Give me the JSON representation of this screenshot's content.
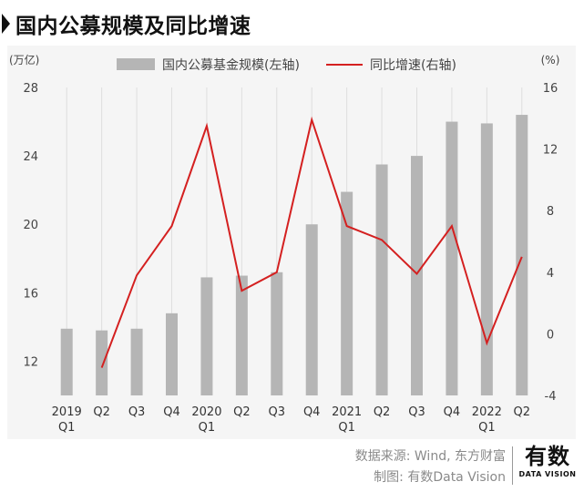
{
  "title": "国内公募规模及同比增速",
  "footer": {
    "source": "数据来源: Wind, 东方财富",
    "credit": "制图: 有数Data Vision"
  },
  "logo": {
    "main": "有数",
    "sub": "DATA VISION"
  },
  "colors": {
    "bar": "#b5b5b5",
    "line": "#d42020",
    "background": "#f5f5f5"
  },
  "chart_data": {
    "type": "bar+line",
    "categories": [
      "2019 Q1",
      "Q2",
      "Q3",
      "Q4",
      "2020 Q1",
      "Q2",
      "Q3",
      "Q4",
      "2021 Q1",
      "Q2",
      "Q3",
      "Q4",
      "2022 Q1",
      "Q2"
    ],
    "category_lines": [
      [
        "2019",
        "Q1"
      ],
      [
        "Q2"
      ],
      [
        "Q3"
      ],
      [
        "Q4"
      ],
      [
        "2020",
        "Q1"
      ],
      [
        "Q2"
      ],
      [
        "Q3"
      ],
      [
        "Q4"
      ],
      [
        "2021",
        "Q1"
      ],
      [
        "Q2"
      ],
      [
        "Q3"
      ],
      [
        "Q4"
      ],
      [
        "2022",
        "Q1"
      ],
      [
        "Q2"
      ]
    ],
    "series": [
      {
        "name": "国内公募基金规模(左轴)",
        "type": "bar",
        "axis": "left",
        "values": [
          13.9,
          13.8,
          13.9,
          14.8,
          16.9,
          17.0,
          17.2,
          20.0,
          21.9,
          23.5,
          24.0,
          26.0,
          25.9,
          26.4
        ]
      },
      {
        "name": "同比增速(右轴)",
        "type": "line",
        "axis": "right",
        "values": [
          null,
          -2.2,
          3.8,
          7.0,
          13.5,
          2.8,
          4.0,
          13.9,
          7.0,
          6.1,
          3.9,
          7.0,
          -0.6,
          5.0
        ]
      }
    ],
    "left_axis": {
      "unit": "(万亿)",
      "ylim": [
        10,
        28
      ],
      "ticks": [
        12,
        16,
        20,
        24,
        28
      ]
    },
    "right_axis": {
      "unit": "(%)",
      "ylim": [
        -4,
        16
      ],
      "ticks": [
        -4,
        0,
        4,
        8,
        12,
        16
      ]
    },
    "grid": "vertical",
    "legend_position": "top"
  }
}
